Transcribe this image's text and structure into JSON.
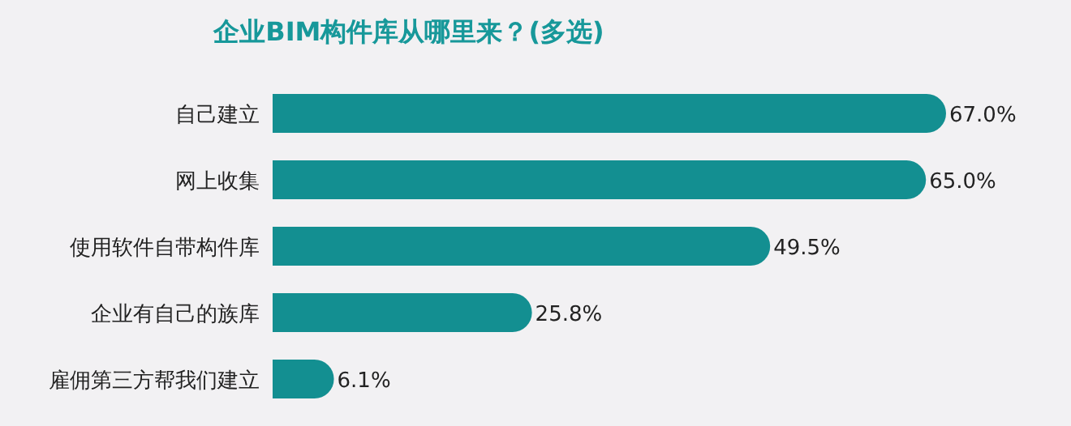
{
  "chart_data": {
    "type": "bar",
    "orientation": "horizontal",
    "title": "企业BIM构件库从哪里来？(多选)",
    "categories": [
      "自己建立",
      "网上收集",
      "使用软件自带构件库",
      "企业有自己的族库",
      "雇佣第三方帮我们建立"
    ],
    "values": [
      67.0,
      65.0,
      49.5,
      25.8,
      6.1
    ],
    "value_labels": [
      "67.0%",
      "65.0%",
      "49.5%",
      "25.8%",
      "6.1%"
    ],
    "color": "#138f91"
  }
}
